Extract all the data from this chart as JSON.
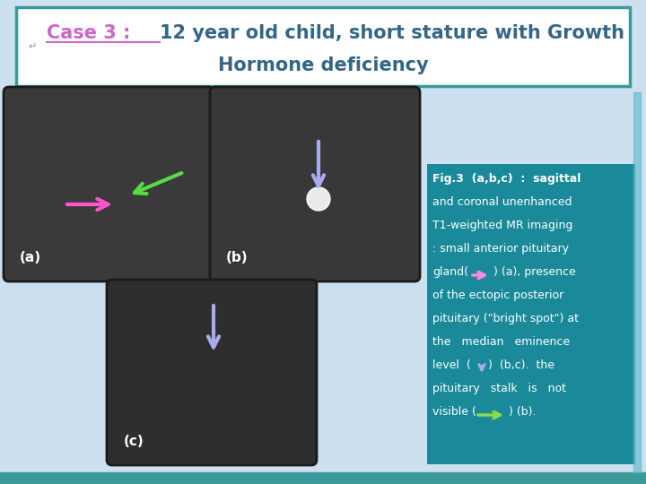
{
  "background_color": "#cce0f0",
  "title_box_bg": "#ffffff",
  "title_box_border": "#3a9a9a",
  "title_case_color": "#cc66cc",
  "title_rest_color": "#336688",
  "title_case_text": "Case 3 : ",
  "title_rest_line1": "12 year old child, short stature with Growth",
  "title_rest_line2": "Hormone deficiency",
  "fig_box_bg": "#1a8a9a",
  "fig_text_color": "#ffffff",
  "label_a": "(a)",
  "label_b": "(b)",
  "label_c": "(c)"
}
